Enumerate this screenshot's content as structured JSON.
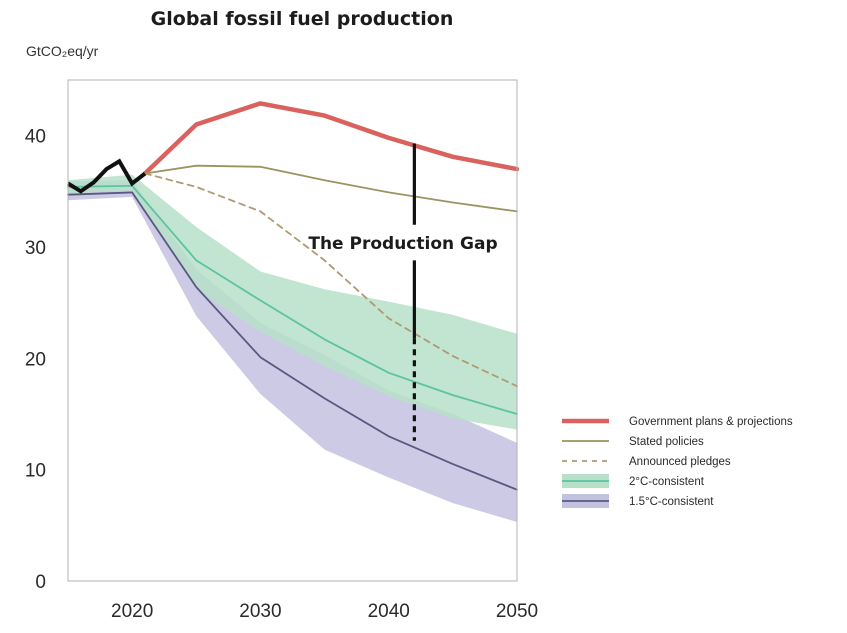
{
  "chart_data": {
    "type": "area",
    "title": "Global fossil fuel production",
    "ylabel": "GtCO₂eq/yr",
    "xlabel": "",
    "xlim": [
      2015,
      2050
    ],
    "ylim": [
      0,
      45
    ],
    "x_ticks": [
      2020,
      2030,
      2040,
      2050
    ],
    "y_ticks": [
      0,
      10,
      20,
      30,
      40
    ],
    "grid": false,
    "legend_position": "right",
    "annotation": "The Production Gap",
    "historical": {
      "color": "#111111",
      "x": [
        2015,
        2016,
        2017,
        2018,
        2019,
        2020,
        2021
      ],
      "y": [
        35.7,
        35.0,
        35.8,
        37.0,
        37.7,
        35.7,
        36.6
      ]
    },
    "series": [
      {
        "name": "Government plans & projections",
        "style": "solid-thick",
        "color": "#d9625e",
        "x": [
          2021,
          2025,
          2030,
          2035,
          2040,
          2045,
          2050
        ],
        "y": [
          36.6,
          41.0,
          42.9,
          41.8,
          39.8,
          38.1,
          37.0
        ]
      },
      {
        "name": "Stated policies",
        "style": "solid",
        "color": "#9a9461",
        "x": [
          2021,
          2025,
          2030,
          2035,
          2040,
          2045,
          2050
        ],
        "y": [
          36.6,
          37.3,
          37.2,
          36.0,
          34.9,
          34.0,
          33.2
        ]
      },
      {
        "name": "Announced pledges",
        "style": "dashed",
        "color": "#b09a73",
        "x": [
          2021,
          2025,
          2030,
          2035,
          2040,
          2045,
          2050
        ],
        "y": [
          36.6,
          35.4,
          33.2,
          28.8,
          23.6,
          20.2,
          17.5
        ]
      },
      {
        "name": "2°C-consistent",
        "style": "band",
        "color": "#5cc3a0",
        "band_color": "#b7e0c9",
        "x": [
          2015,
          2020,
          2025,
          2030,
          2035,
          2040,
          2045,
          2050
        ],
        "y": [
          35.4,
          35.5,
          28.8,
          25.2,
          21.7,
          18.7,
          16.7,
          15.0
        ],
        "upper": [
          36.0,
          36.5,
          31.8,
          27.8,
          26.2,
          25.1,
          23.9,
          22.2
        ],
        "lower": [
          34.8,
          35.1,
          26.2,
          22.4,
          19.3,
          16.6,
          14.6,
          13.6
        ]
      },
      {
        "name": "1.5°C-consistent",
        "style": "band",
        "color": "#5a5880",
        "band_color": "#c3c1e0",
        "x": [
          2015,
          2020,
          2025,
          2030,
          2035,
          2040,
          2045,
          2050
        ],
        "y": [
          34.7,
          34.9,
          26.4,
          20.1,
          16.4,
          13.0,
          10.5,
          8.2
        ],
        "upper": [
          35.9,
          36.0,
          28.0,
          23.2,
          20.3,
          17.1,
          15.0,
          12.4
        ],
        "lower": [
          34.2,
          34.5,
          23.8,
          16.8,
          11.8,
          9.3,
          7.0,
          5.3
        ]
      }
    ],
    "gap_marker": {
      "x": 2042,
      "top": 39.3,
      "bottom": 12.6,
      "solid_to": 21.8
    }
  }
}
